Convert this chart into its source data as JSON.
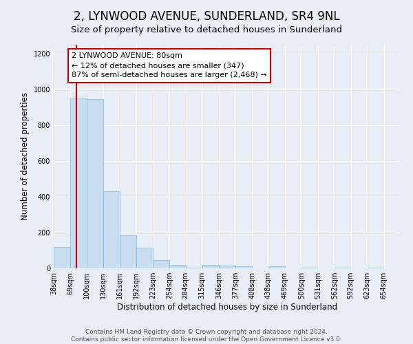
{
  "title": "2, LYNWOOD AVENUE, SUNDERLAND, SR4 9NL",
  "subtitle": "Size of property relative to detached houses in Sunderland",
  "xlabel": "Distribution of detached houses by size in Sunderland",
  "ylabel": "Number of detached properties",
  "footer_line1": "Contains HM Land Registry data © Crown copyright and database right 2024.",
  "footer_line2": "Contains public sector information licensed under the Open Government Licence v3.0.",
  "bar_edges": [
    38,
    69,
    100,
    130,
    161,
    192,
    223,
    254,
    284,
    315,
    346,
    377,
    408,
    438,
    469,
    500,
    531,
    562,
    592,
    623,
    654
  ],
  "bar_heights": [
    120,
    955,
    945,
    430,
    185,
    115,
    48,
    20,
    5,
    20,
    15,
    10,
    0,
    10,
    0,
    5,
    0,
    5,
    0,
    5,
    0
  ],
  "bar_color": "#c9ddf1",
  "bar_edge_color": "#89b8d8",
  "property_size": 80,
  "property_line_color": "#cc0000",
  "annotation_line1": "2 LYNWOOD AVENUE: 80sqm",
  "annotation_line2": "← 12% of detached houses are smaller (347)",
  "annotation_line3": "87% of semi-detached houses are larger (2,468) →",
  "annotation_box_color": "#ffffff",
  "annotation_box_edge_color": "#cc0000",
  "ylim": [
    0,
    1250
  ],
  "yticks": [
    0,
    200,
    400,
    600,
    800,
    1000,
    1200
  ],
  "background_color": "#e8eef5",
  "plot_background_color": "#e8eef5",
  "grid_color": "#ffffff",
  "title_fontsize": 12,
  "subtitle_fontsize": 9.5,
  "axis_label_fontsize": 8.5,
  "tick_fontsize": 7,
  "footer_fontsize": 6.5,
  "annotation_fontsize": 8
}
